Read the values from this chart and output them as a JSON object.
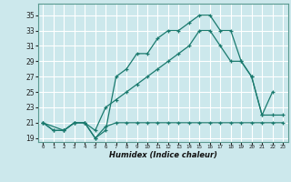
{
  "xlabel": "Humidex (Indice chaleur)",
  "bg_color": "#cce8ec",
  "grid_color": "#ffffff",
  "line_color": "#1a7a6e",
  "xlim": [
    -0.5,
    23.5
  ],
  "ylim": [
    18.5,
    36.5
  ],
  "xtick_vals": [
    0,
    1,
    2,
    3,
    4,
    5,
    6,
    7,
    8,
    9,
    10,
    11,
    12,
    13,
    14,
    15,
    16,
    17,
    18,
    19,
    20,
    21,
    22,
    23
  ],
  "xtick_labels": [
    "0",
    "1",
    "2",
    "3",
    "4",
    "5",
    "6",
    "7",
    "8",
    "9",
    "10",
    "11",
    "12",
    "13",
    "14",
    "15",
    "16",
    "17",
    "18",
    "19",
    "20",
    "21",
    "22",
    "23"
  ],
  "ytick_vals": [
    19,
    21,
    23,
    25,
    27,
    29,
    31,
    33,
    35
  ],
  "line1_x": [
    0,
    1,
    2,
    3,
    4,
    5,
    6,
    7,
    8,
    9,
    10,
    11,
    12,
    13,
    14,
    15,
    16,
    17,
    18,
    19,
    20,
    21,
    22,
    23
  ],
  "line1_y": [
    21,
    20,
    20,
    21,
    21,
    19,
    20.5,
    21,
    21,
    21,
    21,
    21,
    21,
    21,
    21,
    21,
    21,
    21,
    21,
    21,
    21,
    21,
    21,
    21
  ],
  "line2_x": [
    0,
    1,
    2,
    3,
    4,
    5,
    6,
    7,
    8,
    9,
    10,
    11,
    12,
    13,
    14,
    15,
    16,
    17,
    18,
    19,
    20,
    21,
    22,
    23
  ],
  "line2_y": [
    21,
    20,
    20,
    21,
    21,
    20,
    23,
    24,
    25,
    26,
    27,
    28,
    29,
    30,
    31,
    33,
    33,
    31,
    29,
    29,
    27,
    22,
    22,
    22
  ],
  "line3_x": [
    0,
    2,
    3,
    4,
    5,
    6,
    7,
    8,
    9,
    10,
    11,
    12,
    13,
    14,
    15,
    16,
    17,
    18,
    19,
    20,
    21,
    22
  ],
  "line3_y": [
    21,
    20,
    21,
    21,
    19,
    20,
    27,
    28,
    30,
    30,
    32,
    33,
    33,
    34,
    35,
    35,
    33,
    33,
    29,
    27,
    22,
    25
  ]
}
